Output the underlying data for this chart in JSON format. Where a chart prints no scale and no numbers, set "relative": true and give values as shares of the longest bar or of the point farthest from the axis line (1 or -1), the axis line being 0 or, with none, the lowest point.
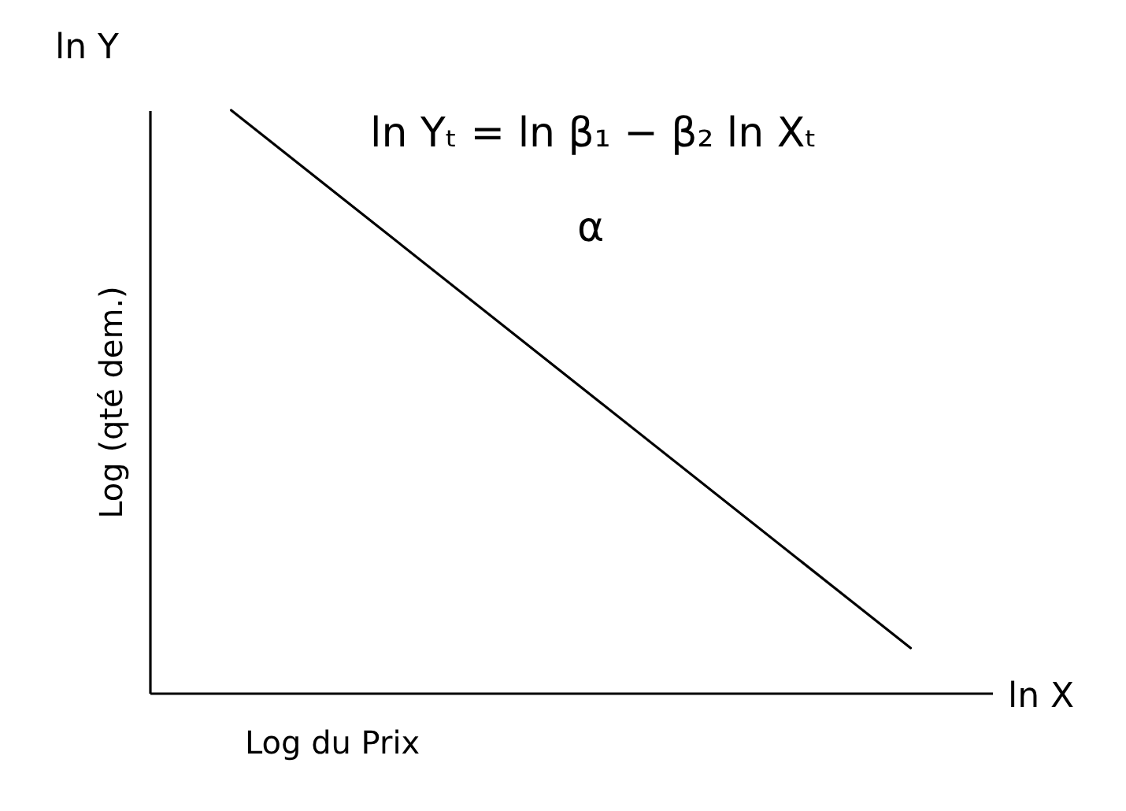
{
  "chart_data": {
    "type": "line",
    "relative": true,
    "categories": [
      null,
      null
    ],
    "series": [
      {
        "color": "#000000",
        "values": [
          1,
          0.077
        ]
      }
    ],
    "xlabel": "Log du Prix",
    "ylabel": "Log (qté dem.)",
    "annotations": [
      "ln Y",
      "ln X",
      "ln Yₜ = ln β₁ − β₂ ln Xₜ",
      "α"
    ],
    "grid": false,
    "marker": "none",
    "line_style": "solid"
  }
}
